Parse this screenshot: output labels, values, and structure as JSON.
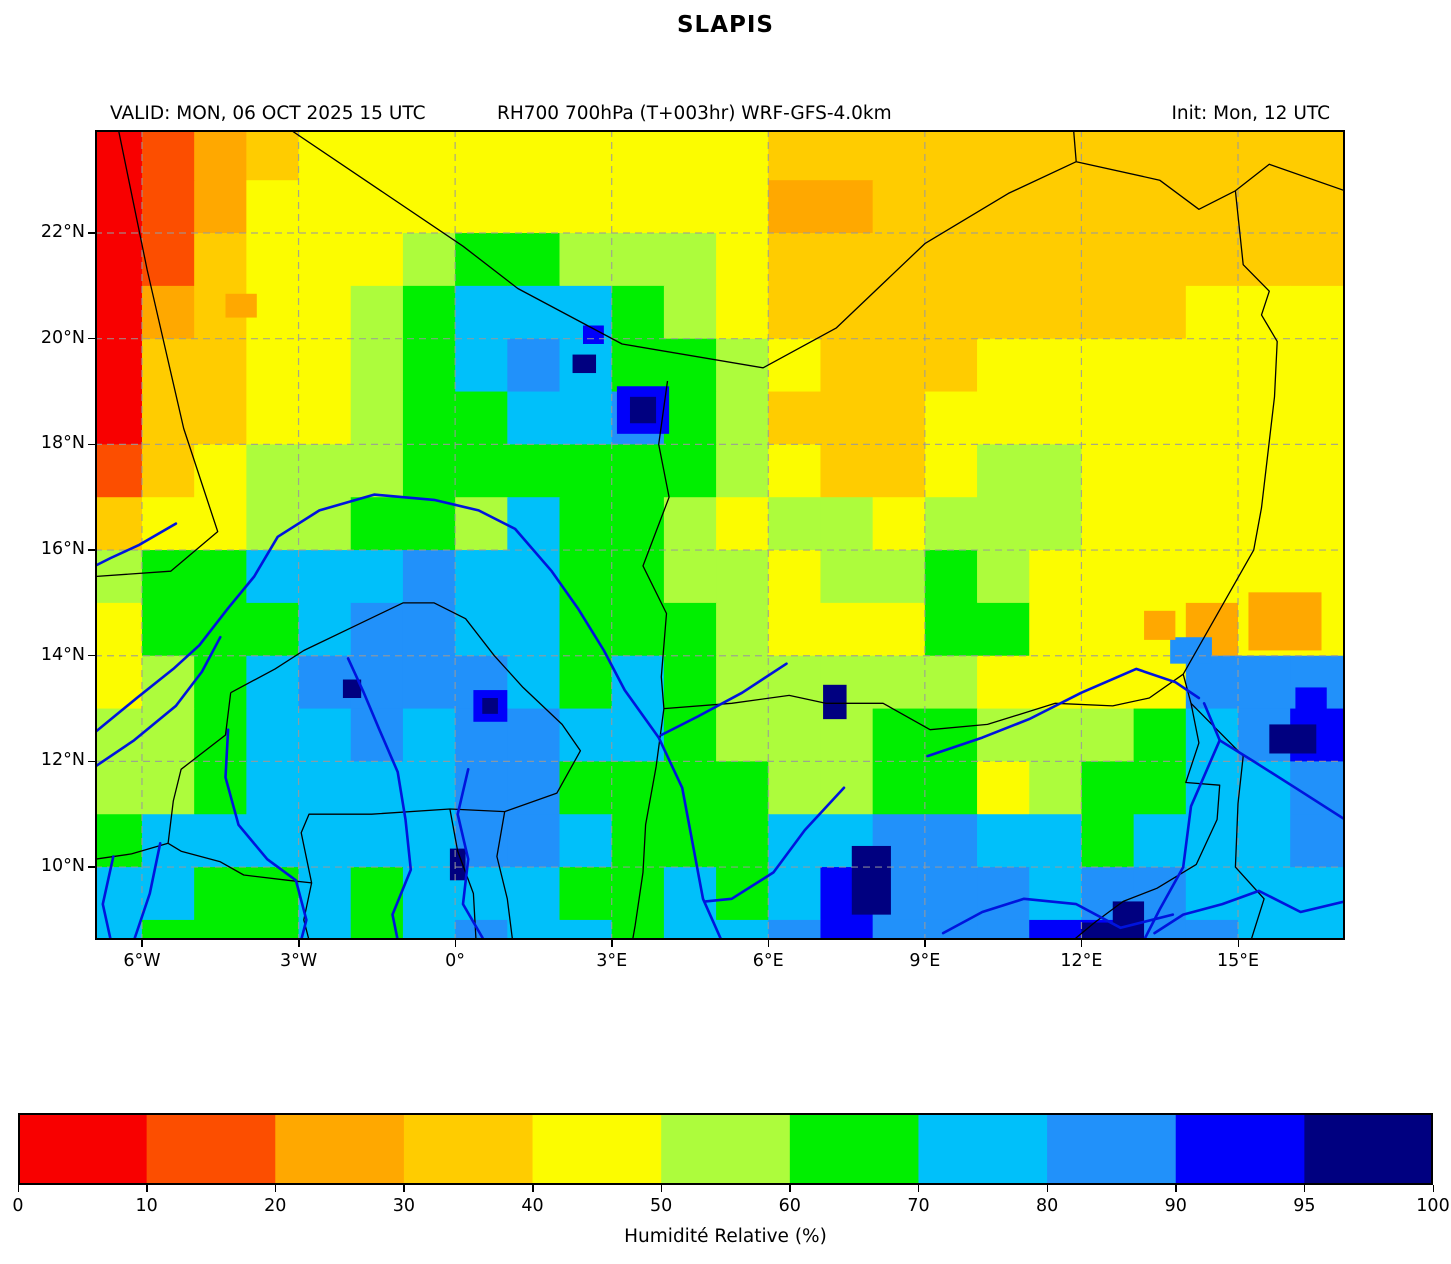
{
  "title": "SLAPIS",
  "header": {
    "valid": "VALID: MON, 06 OCT 2025 15 UTC",
    "model": "RH700 700hPa (T+003hr) WRF-GFS-4.0km",
    "init": "Init: Mon, 12 UTC"
  },
  "chart_data": {
    "type": "heatmap",
    "variable": "Relative humidity at 700 hPa (%)",
    "colorbar": {
      "label": "Humidité Relative (%)",
      "boundaries": [
        0,
        10,
        20,
        30,
        40,
        50,
        60,
        70,
        80,
        90,
        95,
        100
      ],
      "colors": [
        "#f80000",
        "#fc4e00",
        "#ffa800",
        "#ffcc00",
        "#fcfc00",
        "#adfc3c",
        "#00ef00",
        "#00c0fa",
        "#2191fa",
        "#0000fa",
        "#000080"
      ]
    },
    "x_axis": {
      "ticks": [
        "6°W",
        "3°W",
        "0°",
        "3°E",
        "6°E",
        "9°E",
        "12°E",
        "15°E"
      ],
      "values": [
        -6,
        -3,
        0,
        3,
        6,
        9,
        12,
        15
      ]
    },
    "y_axis": {
      "ticks": [
        "10°N",
        "12°N",
        "14°N",
        "16°N",
        "18°N",
        "20°N",
        "22°N"
      ],
      "values": [
        10,
        12,
        14,
        16,
        18,
        20,
        22
      ]
    },
    "extent": {
      "lon_min": -6.9,
      "lon_max": 17.05,
      "lat_min": 8.62,
      "lat_max": 23.95
    },
    "style": {
      "gridline_color": "#9a9a9a",
      "gridline_dash": "7 5",
      "border_color": "#000000",
      "river_color": "#0014dd",
      "frame_color": "#000000"
    },
    "grid": {
      "comment": "RH bin index per 1-degree cell; char 0..9,A maps to colorbar segment 0..10; rows from lat 24N down to 8N, cols from lon 7W to 17E",
      "lon0": -7,
      "lat0": 24,
      "dlon": 1,
      "dlat": 1,
      "rows": [
        "012344444444433333333333",
        "012444444444422333333333",
        "013444566555433333333333",
        "023445677765433333333444",
        "033445678766543334444444",
        "033445667786533344444444",
        "134555666666543345544444",
        "344556657665455455544444",
        "566777877665545565444444",
        "466678877666544466444244",
        "456788887676555554444888",
        "556778788776555665556789",
        "556777788666655664566778",
        "677777788766677887767778",
        "776676777667679888788777",
        "766676787767789888998877"
      ]
    },
    "spots": [
      {
        "lon": 0.35,
        "lat": 13.35,
        "w": 0.65,
        "h": 0.6,
        "bin": 9
      },
      {
        "lon": 0.52,
        "lat": 13.2,
        "w": 0.3,
        "h": 0.3,
        "bin": 10
      },
      {
        "lon": 3.1,
        "lat": 19.1,
        "w": 1.0,
        "h": 0.9,
        "bin": 9
      },
      {
        "lon": 3.35,
        "lat": 18.9,
        "w": 0.5,
        "h": 0.5,
        "bin": 10
      },
      {
        "lon": 2.25,
        "lat": 19.7,
        "w": 0.45,
        "h": 0.35,
        "bin": 10
      },
      {
        "lon": 7.05,
        "lat": 13.45,
        "w": 0.45,
        "h": 0.65,
        "bin": 10
      },
      {
        "lon": 7.6,
        "lat": 10.4,
        "w": 0.75,
        "h": 1.3,
        "bin": 10
      },
      {
        "lon": 12.0,
        "lat": 8.95,
        "w": 1.0,
        "h": 0.33,
        "bin": 10
      },
      {
        "lon": 12.6,
        "lat": 9.35,
        "w": 0.6,
        "h": 0.7,
        "bin": 10
      },
      {
        "lon": 15.6,
        "lat": 12.7,
        "w": 0.9,
        "h": 0.55,
        "bin": 10
      },
      {
        "lon": 16.1,
        "lat": 13.4,
        "w": 0.6,
        "h": 0.5,
        "bin": 9
      },
      {
        "lon": -2.15,
        "lat": 13.55,
        "w": 0.35,
        "h": 0.35,
        "bin": 10
      },
      {
        "lon": -0.1,
        "lat": 10.35,
        "w": 0.3,
        "h": 0.6,
        "bin": 10
      },
      {
        "lon": 13.7,
        "lat": 14.35,
        "w": 0.8,
        "h": 0.5,
        "bin": 8
      },
      {
        "lon": -4.4,
        "lat": 20.85,
        "w": 0.6,
        "h": 0.45,
        "bin": 2
      },
      {
        "lon": 15.2,
        "lat": 15.2,
        "w": 1.4,
        "h": 1.1,
        "bin": 2
      },
      {
        "lon": 13.2,
        "lat": 14.85,
        "w": 0.6,
        "h": 0.55,
        "bin": 2
      },
      {
        "lon": 2.45,
        "lat": 20.25,
        "w": 0.4,
        "h": 0.35,
        "bin": 9
      }
    ],
    "borders": [
      [
        [
          -6.45,
          23.95
        ],
        [
          -5.9,
          21.3
        ],
        [
          -5.2,
          18.3
        ],
        [
          -4.55,
          16.35
        ],
        [
          -5.45,
          15.6
        ],
        [
          -6.9,
          15.5
        ]
      ],
      [
        [
          -3.15,
          23.95
        ],
        [
          0.15,
          21.75
        ],
        [
          1.2,
          20.95
        ],
        [
          3.2,
          19.9
        ],
        [
          5.9,
          19.45
        ],
        [
          7.3,
          20.2
        ],
        [
          9.0,
          21.8
        ],
        [
          10.6,
          22.75
        ],
        [
          11.9,
          23.35
        ]
      ],
      [
        [
          11.9,
          23.35
        ],
        [
          11.85,
          23.95
        ]
      ],
      [
        [
          11.9,
          23.35
        ],
        [
          13.5,
          23.0
        ],
        [
          14.25,
          22.45
        ],
        [
          14.95,
          22.8
        ],
        [
          15.6,
          23.3
        ],
        [
          17.05,
          22.8
        ]
      ],
      [
        [
          14.95,
          22.8
        ],
        [
          15.1,
          21.4
        ],
        [
          15.6,
          20.9
        ],
        [
          15.45,
          20.45
        ],
        [
          15.75,
          19.95
        ],
        [
          15.7,
          18.9
        ],
        [
          15.45,
          16.8
        ],
        [
          15.3,
          16.0
        ],
        [
          13.95,
          13.65
        ],
        [
          14.1,
          13.1
        ]
      ],
      [
        [
          4.07,
          19.2
        ],
        [
          3.9,
          18.0
        ],
        [
          4.1,
          17.0
        ],
        [
          3.6,
          15.7
        ],
        [
          4.05,
          14.8
        ],
        [
          3.95,
          13.6
        ],
        [
          4.0,
          13.0
        ]
      ],
      [
        [
          4.0,
          13.0
        ],
        [
          5.3,
          13.1
        ],
        [
          6.4,
          13.25
        ],
        [
          7.1,
          13.1
        ],
        [
          8.2,
          13.1
        ],
        [
          9.1,
          12.6
        ],
        [
          10.2,
          12.7
        ],
        [
          11.5,
          13.1
        ],
        [
          12.6,
          13.05
        ],
        [
          13.3,
          13.2
        ],
        [
          13.95,
          13.65
        ]
      ],
      [
        [
          -4.3,
          13.3
        ],
        [
          -3.45,
          13.75
        ],
        [
          -2.9,
          14.1
        ],
        [
          -1.95,
          14.55
        ],
        [
          -1.0,
          15.0
        ],
        [
          -0.4,
          15.0
        ],
        [
          0.2,
          14.7
        ],
        [
          0.75,
          14.0
        ],
        [
          1.3,
          13.4
        ],
        [
          2.05,
          12.7
        ],
        [
          2.4,
          12.2
        ],
        [
          1.95,
          11.4
        ],
        [
          0.95,
          11.05
        ],
        [
          -0.1,
          11.1
        ],
        [
          -1.6,
          11.0
        ],
        [
          -2.8,
          11.0
        ],
        [
          -2.95,
          10.65
        ],
        [
          -2.75,
          9.7
        ],
        [
          -3.2,
          9.75
        ],
        [
          -4.05,
          9.85
        ],
        [
          -4.5,
          10.1
        ],
        [
          -5.25,
          10.3
        ],
        [
          -5.5,
          10.45
        ],
        [
          -5.4,
          11.25
        ],
        [
          -5.25,
          11.85
        ],
        [
          -4.4,
          12.5
        ],
        [
          -4.3,
          13.3
        ]
      ],
      [
        [
          -0.1,
          11.1
        ],
        [
          0.05,
          10.3
        ],
        [
          0.35,
          9.5
        ],
        [
          0.4,
          8.62
        ]
      ],
      [
        [
          0.95,
          11.05
        ],
        [
          0.8,
          10.2
        ],
        [
          1.0,
          9.4
        ],
        [
          1.1,
          8.62
        ]
      ],
      [
        [
          4.0,
          13.0
        ],
        [
          3.85,
          11.9
        ],
        [
          3.65,
          10.8
        ],
        [
          3.6,
          9.9
        ],
        [
          3.45,
          8.9
        ],
        [
          3.4,
          8.62
        ]
      ],
      [
        [
          -6.9,
          10.15
        ],
        [
          -6.2,
          10.25
        ],
        [
          -5.5,
          10.45
        ]
      ],
      [
        [
          -2.75,
          9.7
        ],
        [
          -2.9,
          9.0
        ],
        [
          -2.8,
          8.62
        ]
      ],
      [
        [
          14.1,
          13.1
        ],
        [
          14.25,
          12.35
        ],
        [
          14.0,
          11.6
        ],
        [
          14.65,
          11.55
        ],
        [
          14.6,
          10.9
        ],
        [
          14.2,
          10.05
        ],
        [
          13.45,
          9.6
        ],
        [
          12.8,
          9.35
        ],
        [
          12.25,
          8.95
        ],
        [
          11.85,
          8.62
        ]
      ],
      [
        [
          14.1,
          13.1
        ],
        [
          15.1,
          12.1
        ],
        [
          15.0,
          11.2
        ],
        [
          14.95,
          10.0
        ],
        [
          15.5,
          9.4
        ],
        [
          15.25,
          8.62
        ]
      ]
    ],
    "rivers": [
      [
        [
          -6.9,
          12.55
        ],
        [
          -6.1,
          13.2
        ],
        [
          -5.4,
          13.75
        ],
        [
          -4.9,
          14.2
        ],
        [
          -4.35,
          14.9
        ],
        [
          -3.85,
          15.5
        ],
        [
          -3.4,
          16.25
        ],
        [
          -2.6,
          16.75
        ],
        [
          -1.55,
          17.05
        ],
        [
          -0.4,
          16.95
        ],
        [
          0.45,
          16.75
        ],
        [
          1.15,
          16.4
        ],
        [
          1.85,
          15.6
        ],
        [
          2.35,
          14.9
        ],
        [
          2.85,
          14.1
        ],
        [
          3.25,
          13.35
        ],
        [
          3.9,
          12.45
        ],
        [
          4.35,
          11.5
        ],
        [
          4.55,
          10.45
        ],
        [
          4.75,
          9.4
        ],
        [
          5.1,
          8.62
        ]
      ],
      [
        [
          -6.9,
          11.9
        ],
        [
          -6.15,
          12.4
        ],
        [
          -5.35,
          13.05
        ],
        [
          -4.85,
          13.7
        ],
        [
          -4.5,
          14.35
        ]
      ],
      [
        [
          -5.35,
          16.5
        ],
        [
          -6.05,
          16.1
        ],
        [
          -6.6,
          15.85
        ],
        [
          -6.9,
          15.7
        ]
      ],
      [
        [
          -4.35,
          12.6
        ],
        [
          -4.4,
          11.7
        ],
        [
          -4.15,
          10.8
        ],
        [
          -3.6,
          10.15
        ],
        [
          -3.05,
          9.75
        ],
        [
          -2.85,
          9.0
        ],
        [
          -2.95,
          8.62
        ]
      ],
      [
        [
          -2.05,
          13.95
        ],
        [
          -1.75,
          13.3
        ],
        [
          -1.45,
          12.6
        ],
        [
          -1.1,
          11.8
        ],
        [
          -0.95,
          10.9
        ],
        [
          -0.85,
          9.95
        ],
        [
          -1.2,
          9.1
        ],
        [
          -1.1,
          8.62
        ]
      ],
      [
        [
          0.25,
          11.85
        ],
        [
          0.05,
          11.0
        ],
        [
          0.25,
          10.15
        ],
        [
          0.15,
          9.3
        ],
        [
          0.55,
          8.62
        ]
      ],
      [
        [
          6.35,
          13.85
        ],
        [
          5.5,
          13.3
        ],
        [
          4.65,
          12.85
        ],
        [
          3.95,
          12.5
        ]
      ],
      [
        [
          7.45,
          11.5
        ],
        [
          6.7,
          10.7
        ],
        [
          6.1,
          9.9
        ],
        [
          5.3,
          9.4
        ],
        [
          4.8,
          9.35
        ]
      ],
      [
        [
          13.75,
          9.1
        ],
        [
          12.75,
          8.85
        ],
        [
          11.9,
          9.3
        ],
        [
          10.9,
          9.4
        ],
        [
          10.1,
          9.15
        ],
        [
          9.35,
          8.75
        ]
      ],
      [
        [
          9.05,
          12.1
        ],
        [
          10.1,
          12.45
        ],
        [
          11.0,
          12.8
        ],
        [
          12.0,
          13.3
        ],
        [
          13.05,
          13.75
        ],
        [
          13.8,
          13.5
        ],
        [
          14.25,
          13.2
        ]
      ],
      [
        [
          14.35,
          13.1
        ],
        [
          14.65,
          12.4
        ],
        [
          14.1,
          11.15
        ],
        [
          13.95,
          10.0
        ],
        [
          13.5,
          9.2
        ],
        [
          13.2,
          8.62
        ]
      ],
      [
        [
          17.05,
          10.9
        ],
        [
          16.1,
          11.5
        ],
        [
          15.3,
          12.0
        ],
        [
          14.65,
          12.4
        ]
      ],
      [
        [
          17.05,
          9.35
        ],
        [
          16.2,
          9.15
        ],
        [
          15.4,
          9.55
        ],
        [
          14.7,
          9.3
        ],
        [
          13.95,
          9.1
        ],
        [
          13.4,
          8.75
        ]
      ],
      [
        [
          -5.65,
          10.45
        ],
        [
          -5.85,
          9.5
        ],
        [
          -6.15,
          8.62
        ]
      ],
      [
        [
          -6.55,
          10.2
        ],
        [
          -6.75,
          9.3
        ],
        [
          -6.6,
          8.62
        ]
      ]
    ]
  }
}
